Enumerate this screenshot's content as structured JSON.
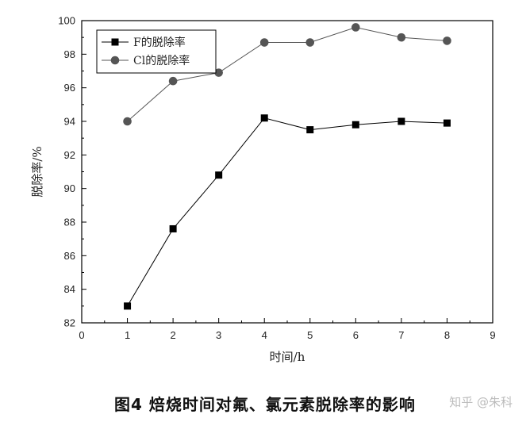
{
  "chart_data": {
    "type": "line",
    "x": [
      1,
      2,
      3,
      4,
      5,
      6,
      7,
      8
    ],
    "series": [
      {
        "name": "F的脱除率",
        "marker": "square",
        "color": "#000000",
        "values": [
          83.0,
          87.6,
          90.8,
          94.2,
          93.5,
          93.8,
          94.0,
          93.9
        ]
      },
      {
        "name": "Cl的脱除率",
        "marker": "circle",
        "color": "#555555",
        "values": [
          94.0,
          96.4,
          96.9,
          98.7,
          98.7,
          99.6,
          99.0,
          98.8
        ]
      }
    ],
    "xlabel": "时间/h",
    "ylabel": "脱除率/%",
    "xlim": [
      0,
      9
    ],
    "ylim": [
      82,
      100
    ],
    "xticks": [
      "0",
      "1",
      "2",
      "3",
      "4",
      "5",
      "6",
      "7",
      "8",
      "9"
    ],
    "yticks": [
      "82",
      "84",
      "86",
      "88",
      "90",
      "92",
      "94",
      "96",
      "98",
      "100"
    ],
    "legend_position": "top-left",
    "grid": false
  },
  "caption": "图4 焙烧时间对氟、氯元素脱除率的影响",
  "watermark": "知乎 @朱科"
}
